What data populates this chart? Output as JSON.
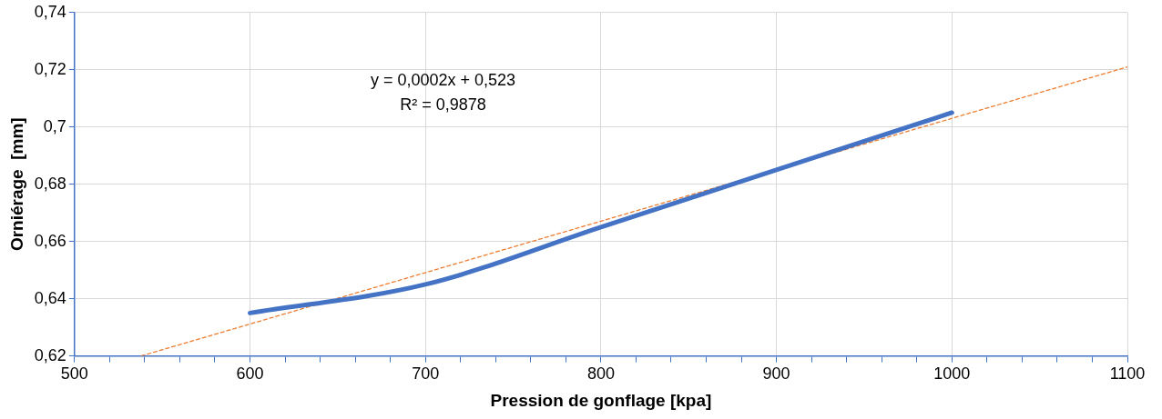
{
  "chart_data": {
    "type": "line",
    "xlabel": "Pression de gonflage [kpa]",
    "ylabel": "Orniérage  [mm]",
    "x": [
      600,
      700,
      800,
      900,
      1000
    ],
    "series": [
      {
        "color": "#4472c4",
        "values": [
          0.635,
          0.645,
          0.665,
          0.685,
          0.705
        ]
      },
      {
        "color": "#ed7d31",
        "line_style": "dashed",
        "x": [
          538,
          1100
        ],
        "values": [
          0.62,
          0.721
        ]
      }
    ],
    "xlim": [
      500,
      1100
    ],
    "xticks": [
      500,
      {
        "value": 520,
        "label": null
      },
      {
        "value": 540,
        "label": null
      },
      {
        "value": 560,
        "label": null
      },
      {
        "value": 580,
        "label": null
      },
      600,
      {
        "value": 620,
        "label": null
      },
      {
        "value": 640,
        "label": null
      },
      {
        "value": 660,
        "label": null
      },
      {
        "value": 680,
        "label": null
      },
      700,
      {
        "value": 720,
        "label": null
      },
      {
        "value": 740,
        "label": null
      },
      {
        "value": 760,
        "label": null
      },
      {
        "value": 780,
        "label": null
      },
      800,
      {
        "value": 820,
        "label": null
      },
      {
        "value": 840,
        "label": null
      },
      {
        "value": 860,
        "label": null
      },
      {
        "value": 880,
        "label": null
      },
      900,
      {
        "value": 920,
        "label": null
      },
      {
        "value": 940,
        "label": null
      },
      {
        "value": 960,
        "label": null
      },
      {
        "value": 980,
        "label": null
      },
      1000,
      {
        "value": 1020,
        "label": null
      },
      {
        "value": 1040,
        "label": null
      },
      {
        "value": 1060,
        "label": null
      },
      {
        "value": 1080,
        "label": null
      },
      1100
    ],
    "ylim": [
      0.62,
      0.74
    ],
    "yticks": [
      {
        "value": 0.62,
        "label": "0,62"
      },
      {
        "value": 0.64,
        "label": "0,64"
      },
      {
        "value": 0.66,
        "label": "0,66"
      },
      {
        "value": 0.68,
        "label": "0,68"
      },
      {
        "value": 0.7,
        "label": "0,7"
      },
      {
        "value": 0.72,
        "label": "0,72"
      },
      {
        "value": 0.74,
        "label": "0,74"
      }
    ],
    "grid": true,
    "marker": "none",
    "annotations": [
      "y = 0,0002x + 0,523",
      "R² = 0,9878"
    ]
  }
}
